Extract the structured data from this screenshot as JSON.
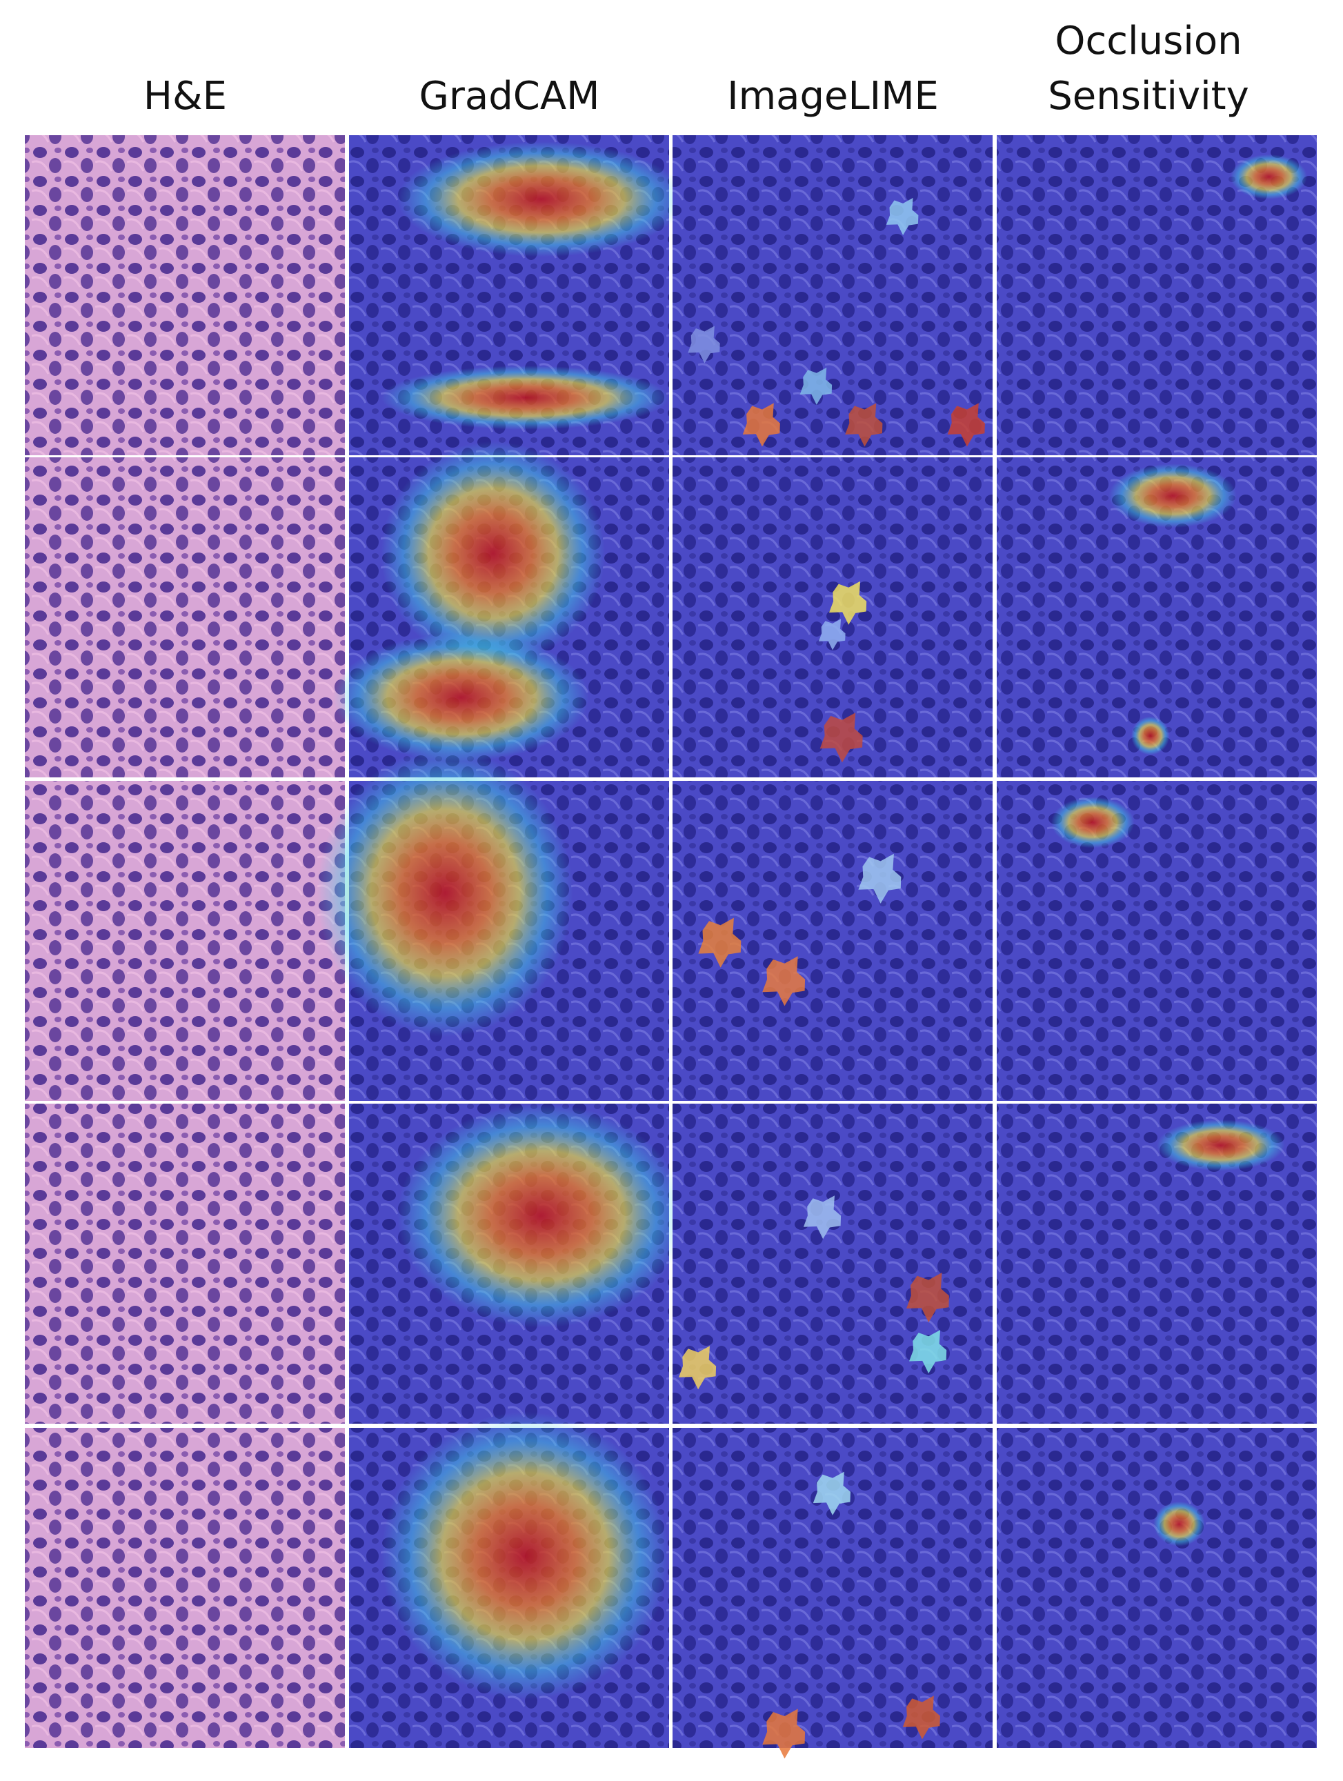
{
  "columns": [
    "H&E",
    "GradCAM",
    "ImageLIME",
    "Occlusion Sensitivity"
  ]
}
